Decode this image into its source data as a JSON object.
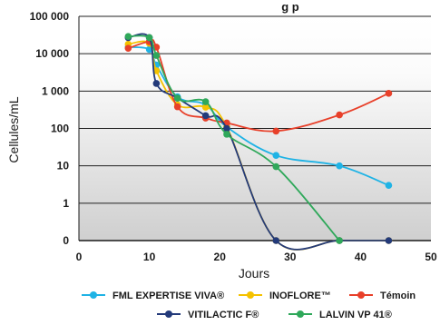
{
  "chart_data": {
    "type": "line",
    "title": "g p",
    "xlabel": "Jours",
    "ylabel": "Cellules/mL",
    "xlim": [
      0,
      50
    ],
    "x_ticks": [
      0,
      10,
      20,
      30,
      40,
      50
    ],
    "x_tick_labels": [
      "0",
      "10",
      "20",
      "30",
      "40",
      "50"
    ],
    "y_scale": "log",
    "y_note": "bottom tick '0' drawn one decade below 1",
    "y_ticks": [
      0,
      1,
      10,
      100,
      1000,
      10000,
      100000
    ],
    "y_tick_labels": [
      "0",
      "1",
      "10",
      "100",
      "1 000",
      "10 000",
      "100 000"
    ],
    "background": "gradient-shaded",
    "legend_position": "bottom",
    "series": [
      {
        "name": "FML EXPERTISE VIVA®",
        "color": "#1fb3e5",
        "points": [
          [
            7,
            15000
          ],
          [
            10,
            13000
          ],
          [
            11,
            5000
          ],
          [
            14,
            700
          ],
          [
            18,
            430
          ],
          [
            21,
            110
          ],
          [
            28,
            19
          ],
          [
            37,
            10
          ],
          [
            44,
            3
          ]
        ]
      },
      {
        "name": "INOFLORE™",
        "color": "#f5c200",
        "points": [
          [
            7,
            18000
          ],
          [
            10,
            19000
          ],
          [
            11,
            3500
          ],
          [
            14,
            430
          ],
          [
            18,
            370
          ],
          [
            21,
            110
          ],
          [
            28,
            0
          ],
          [
            37,
            0
          ],
          [
            44,
            0
          ]
        ]
      },
      {
        "name": "Témoin",
        "color": "#e8402a",
        "points": [
          [
            7,
            14000
          ],
          [
            10,
            21000
          ],
          [
            11,
            15000
          ],
          [
            14,
            380
          ],
          [
            18,
            190
          ],
          [
            21,
            140
          ],
          [
            28,
            85
          ],
          [
            37,
            230
          ],
          [
            44,
            870
          ]
        ]
      },
      {
        "name": "VITILACTIC F®",
        "color": "#233a7a",
        "points": [
          [
            7,
            27000
          ],
          [
            10,
            27000
          ],
          [
            11,
            1600
          ],
          [
            14,
            650
          ],
          [
            18,
            220
          ],
          [
            21,
            100
          ],
          [
            28,
            0
          ],
          [
            37,
            0
          ],
          [
            44,
            0
          ]
        ]
      },
      {
        "name": "LALVIN VP 41®",
        "color": "#2fa85a",
        "points": [
          [
            7,
            29000
          ],
          [
            10,
            27000
          ],
          [
            11,
            9000
          ],
          [
            14,
            650
          ],
          [
            18,
            520
          ],
          [
            21,
            70
          ],
          [
            28,
            9.5
          ],
          [
            37,
            0
          ]
        ]
      }
    ]
  }
}
